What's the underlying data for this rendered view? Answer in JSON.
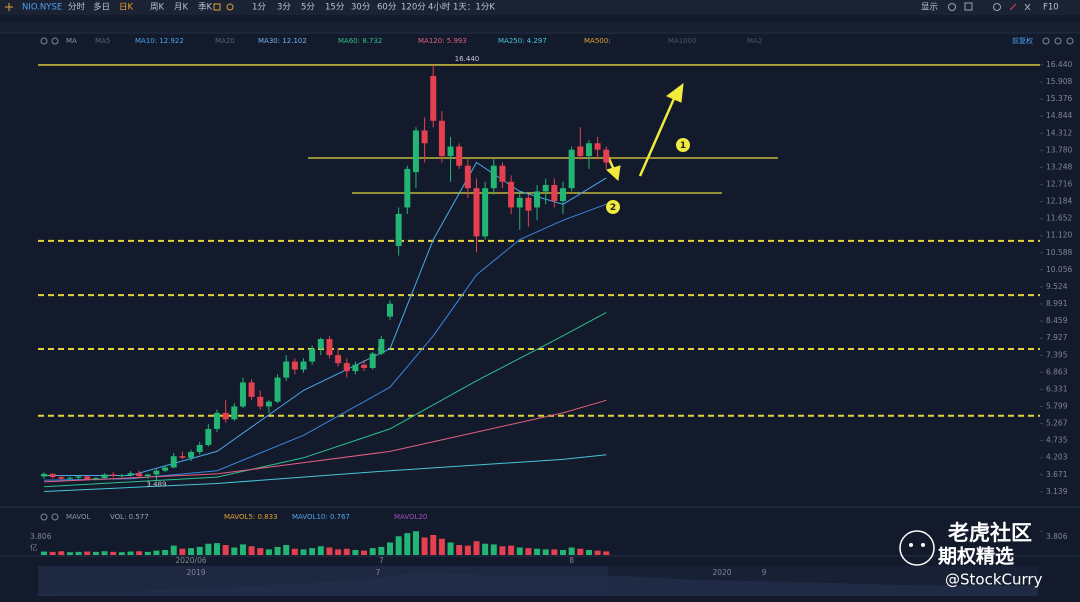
{
  "toolbar": {
    "symbol": "NIO.NYSE",
    "tabs": [
      "分时",
      "多日",
      "日K",
      "周K",
      "月K",
      "季K",
      "1分",
      "3分",
      "5分",
      "15分",
      "30分",
      "60分",
      "120分",
      "4小时",
      "1天：1分K"
    ],
    "selected": 2,
    "right": [
      "显示",
      "F10"
    ]
  },
  "chart_data": {
    "type": "candlestick",
    "categories": [
      null,
      null,
      null,
      null,
      null,
      null,
      null,
      null,
      null,
      null,
      null,
      null,
      null,
      null,
      null,
      null,
      null,
      "2020/06",
      null,
      null,
      null,
      null,
      null,
      null,
      null,
      null,
      null,
      null,
      null,
      null,
      null,
      null,
      null,
      null,
      null,
      null,
      null,
      null,
      null,
      "7",
      null,
      null,
      null,
      null,
      null,
      null,
      null,
      null,
      null,
      null,
      null,
      null,
      null,
      null,
      null,
      null,
      null,
      null,
      null,
      null,
      null,
      "8",
      null,
      null,
      null,
      null
    ],
    "open": [
      3.62,
      3.7,
      3.6,
      3.55,
      3.58,
      3.62,
      3.53,
      3.57,
      3.68,
      3.64,
      3.66,
      3.72,
      3.63,
      3.68,
      3.8,
      3.9,
      4.25,
      4.2,
      4.38,
      4.6,
      5.1,
      5.6,
      5.4,
      5.8,
      6.55,
      6.1,
      5.8,
      5.95,
      6.7,
      7.2,
      6.95,
      7.2,
      7.6,
      7.9,
      7.4,
      7.15,
      6.9,
      7.1,
      7.0,
      7.45,
      8.6,
      10.8,
      12.0,
      13.1,
      14.4,
      16.1,
      14.7,
      13.6,
      13.9,
      13.3,
      12.6,
      11.1,
      12.6,
      13.3,
      12.8,
      12.0,
      12.3,
      12.0,
      12.5,
      12.7,
      12.2,
      12.6,
      13.9,
      13.6,
      14.0,
      13.8
    ],
    "high": [
      3.75,
      3.72,
      3.65,
      3.62,
      3.66,
      3.64,
      3.6,
      3.72,
      3.75,
      3.7,
      3.78,
      3.8,
      3.7,
      3.85,
      3.95,
      4.35,
      4.4,
      4.45,
      4.7,
      5.25,
      5.7,
      6.0,
      5.9,
      6.7,
      6.65,
      6.3,
      6.0,
      6.8,
      7.4,
      7.3,
      7.3,
      7.7,
      7.95,
      8.0,
      7.6,
      7.3,
      7.2,
      7.25,
      7.5,
      8.0,
      9.1,
      12.0,
      13.3,
      14.5,
      14.8,
      16.44,
      15.0,
      14.2,
      14.0,
      13.5,
      12.9,
      12.8,
      13.5,
      13.4,
      13.0,
      12.5,
      12.4,
      12.7,
      12.9,
      12.9,
      12.8,
      13.9,
      14.5,
      14.1,
      14.2,
      13.9
    ],
    "low": [
      3.55,
      3.55,
      3.5,
      3.49,
      3.52,
      3.5,
      3.49,
      3.55,
      3.6,
      3.58,
      3.62,
      3.6,
      3.55,
      3.489,
      3.75,
      3.88,
      4.15,
      4.1,
      4.3,
      4.55,
      5.0,
      5.3,
      5.35,
      5.75,
      6.0,
      5.7,
      5.6,
      5.9,
      6.6,
      6.8,
      6.85,
      7.1,
      7.4,
      7.3,
      7.05,
      6.7,
      6.8,
      6.9,
      6.95,
      7.4,
      8.5,
      10.5,
      11.8,
      12.6,
      13.4,
      14.5,
      13.4,
      12.8,
      13.2,
      12.3,
      10.6,
      11.0,
      12.4,
      12.6,
      11.8,
      11.3,
      11.4,
      11.6,
      12.1,
      12.0,
      11.8,
      12.5,
      13.5,
      13.2,
      13.5,
      13.2
    ],
    "close": [
      3.7,
      3.6,
      3.55,
      3.58,
      3.62,
      3.53,
      3.57,
      3.68,
      3.64,
      3.66,
      3.72,
      3.63,
      3.68,
      3.8,
      3.9,
      4.25,
      4.2,
      4.38,
      4.6,
      5.1,
      5.6,
      5.4,
      5.8,
      6.55,
      6.1,
      5.8,
      5.95,
      6.7,
      7.2,
      6.95,
      7.2,
      7.6,
      7.9,
      7.4,
      7.15,
      6.9,
      7.1,
      7.0,
      7.45,
      7.9,
      9.0,
      11.8,
      13.2,
      14.4,
      14.0,
      14.7,
      13.6,
      13.9,
      13.3,
      12.6,
      11.1,
      12.6,
      13.3,
      12.8,
      12.0,
      12.3,
      11.9,
      12.5,
      12.7,
      12.2,
      12.6,
      13.8,
      13.6,
      14.0,
      13.8,
      13.4
    ],
    "up_color": "#22b573",
    "down_color": "#e5404f",
    "ylim": [
      2.73,
      16.75
    ],
    "yticks": [
      {
        "value": 16.44,
        "label": "16.440"
      },
      15.908,
      15.376,
      14.844,
      14.312,
      {
        "value": 13.78,
        "label": "13.780"
      },
      13.248,
      12.716,
      12.184,
      11.652,
      {
        "value": 11.12,
        "label": "11.120"
      },
      10.588,
      10.056,
      9.524,
      8.991,
      8.459,
      7.927,
      7.395,
      6.863,
      6.331,
      5.799,
      5.267,
      4.735,
      4.203,
      3.671,
      3.139
    ],
    "grid": false,
    "indicator": "MA",
    "inactive": [
      "MA5",
      "MA20",
      "MA500:",
      "MA1000",
      "MA2"
    ],
    "adjust": "前复权",
    "series": [
      {
        "name": "MA10: 12.922",
        "color": "#4aa8e8",
        "x": [
          0,
          10,
          20,
          30,
          40,
          45,
          50,
          55,
          60,
          65
        ],
        "values": [
          3.65,
          3.65,
          4.4,
          6.3,
          7.6,
          11.0,
          13.4,
          12.5,
          12.1,
          12.922
        ]
      },
      {
        "name": "MA30: 12.102",
        "color": "#3a86e0",
        "x": [
          0,
          10,
          20,
          30,
          40,
          45,
          50,
          55,
          60,
          65
        ],
        "values": [
          3.5,
          3.55,
          3.8,
          4.9,
          6.4,
          8.0,
          9.9,
          11.0,
          11.6,
          12.102
        ]
      },
      {
        "name": "MA60: 8.732",
        "color": "#2fbf8f",
        "x": [
          0,
          20,
          30,
          40,
          50,
          60,
          65
        ],
        "values": [
          3.3,
          3.6,
          4.2,
          5.1,
          6.6,
          8.0,
          8.732
        ]
      },
      {
        "name": "MA120: 5.993",
        "color": "#e0607e",
        "x": [
          0,
          20,
          40,
          50,
          60,
          65
        ],
        "values": [
          3.45,
          3.7,
          4.4,
          5.0,
          5.6,
          5.993
        ]
      },
      {
        "name": "MA250: 4.297",
        "color": "#45c6d8",
        "x": [
          0,
          20,
          40,
          60,
          65
        ],
        "values": [
          3.15,
          3.4,
          3.8,
          4.15,
          4.297
        ]
      }
    ],
    "levels": [
      {
        "value": 16.44,
        "label": "16.440",
        "style": "solid"
      },
      {
        "value": 13.54,
        "style": "solid"
      },
      {
        "value": 12.45,
        "style": "solid"
      },
      {
        "value": 10.96,
        "style": "dashed"
      },
      {
        "value": 9.27,
        "style": "dashed"
      },
      {
        "value": 7.59,
        "style": "dashed"
      },
      {
        "value": 5.51,
        "style": "dashed"
      }
    ],
    "level_color": "#e3d43a",
    "annotations": [
      "1",
      "2"
    ],
    "volume": {
      "title": "MAVOL",
      "legend": [
        "VOL: 0.577",
        "MAVOL5: 0.833",
        "MAVOL10: 0.767",
        "MAVOL20"
      ],
      "values": [
        0.55,
        0.5,
        0.6,
        0.45,
        0.5,
        0.55,
        0.5,
        0.6,
        0.5,
        0.45,
        0.55,
        0.6,
        0.5,
        0.7,
        0.8,
        1.5,
        1.0,
        1.1,
        1.3,
        1.8,
        1.9,
        1.6,
        1.2,
        1.7,
        1.4,
        1.1,
        0.9,
        1.3,
        1.6,
        1.0,
        0.9,
        1.1,
        1.4,
        1.2,
        0.9,
        1.0,
        0.8,
        0.7,
        1.1,
        1.3,
        2.0,
        3.0,
        3.5,
        3.8,
        2.8,
        3.2,
        2.6,
        2.0,
        1.6,
        1.5,
        2.2,
        1.8,
        1.7,
        1.4,
        1.5,
        1.2,
        1.1,
        1.0,
        0.9,
        0.9,
        0.8,
        1.2,
        1.0,
        0.8,
        0.7,
        0.577
      ],
      "ylim": [
        0,
        4.0
      ],
      "yticks": [
        3.806
      ],
      "unit": "亿"
    }
  },
  "navigator": {
    "labels": [
      "2019",
      "7",
      "2020",
      "9"
    ]
  },
  "watermark": {
    "title": "老虎社区",
    "subtitle": "期权精选",
    "handle": "@StockCurry"
  }
}
